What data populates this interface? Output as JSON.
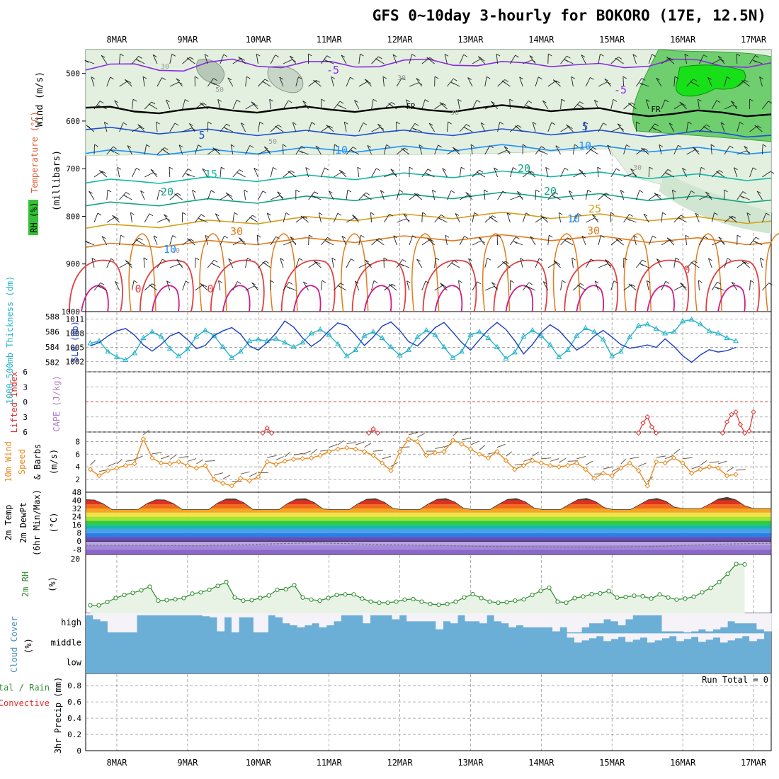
{
  "title": "GFS 0~10day 3-hourly for BOKORO (17E, 12.5N)",
  "dates": [
    "8MAR",
    "9MAR",
    "10MAR",
    "11MAR",
    "12MAR",
    "13MAR",
    "14MAR",
    "15MAR",
    "16MAR",
    "17MAR"
  ],
  "colors": {
    "rh_fill": "#e3f0e0",
    "rh_mid": "#6fcf6f",
    "rh_high": "#18e018",
    "cloud": "#6baed6",
    "cloud_bg": "#f5f2f8",
    "grid": "#9a9a9a"
  },
  "chart_data": [
    {
      "id": "upper_air",
      "type": "contour",
      "ylabel_rh": "RH (%)",
      "ylabel_temp": "Temperature (°C)",
      "ylabel_wind": "Wind (m/s)",
      "ylabel_axis": "(millibars)",
      "yticks": [
        500,
        600,
        700,
        800,
        900,
        1000
      ],
      "ylim": [
        450,
        1000
      ],
      "temperature_labels": [
        "-5",
        "-5",
        "FR",
        "FR",
        "5",
        "5",
        "10",
        "10",
        "15",
        "15",
        "20",
        "20",
        "25",
        "30",
        "30",
        "0",
        "0",
        "0",
        "10",
        "10"
      ],
      "rh_labels": [
        "30",
        "50",
        "30",
        "30",
        "50",
        "30",
        "10"
      ],
      "isotherms": [
        {
          "label": "-5",
          "color": "#8a2be2",
          "p": [
            493,
            480,
            495,
            470,
            488,
            475,
            486,
            470,
            484,
            478,
            482,
            488,
            470,
            485,
            478
          ]
        },
        {
          "label": "FR",
          "color": "#000000",
          "p": [
            572,
            580,
            576,
            578,
            575,
            576,
            574,
            577,
            573,
            572,
            575,
            583,
            585,
            582,
            586
          ]
        },
        {
          "label": "5",
          "color": "#1f4fd6",
          "p": [
            618,
            620,
            622,
            624,
            625,
            626,
            624,
            626,
            623,
            622,
            624,
            626,
            628,
            625,
            630
          ]
        },
        {
          "label": "10",
          "color": "#1e90ff",
          "p": [
            668,
            665,
            666,
            664,
            662,
            660,
            659,
            658,
            656,
            655,
            657,
            658,
            660,
            662,
            665
          ]
        },
        {
          "label": "15",
          "color": "#14b8a6",
          "p": [
            730,
            726,
            724,
            722,
            720,
            718,
            716,
            714,
            712,
            710,
            712,
            714,
            716,
            718,
            720
          ]
        },
        {
          "label": "20",
          "color": "#10a37f",
          "p": [
            778,
            774,
            770,
            768,
            765,
            762,
            760,
            758,
            756,
            755,
            757,
            760,
            762,
            764,
            766
          ]
        },
        {
          "label": "25",
          "color": "#d4a017",
          "p": [
            825,
            820,
            816,
            812,
            808,
            805,
            802,
            800,
            798,
            797,
            800,
            802,
            805,
            808,
            810
          ]
        },
        {
          "label": "30",
          "color": "#e07b1a",
          "p": [
            865,
            860,
            858,
            855,
            852,
            850,
            848,
            846,
            845,
            844,
            846,
            848,
            850,
            852,
            855
          ]
        }
      ]
    },
    {
      "id": "thickness_slp",
      "type": "line",
      "ylabel_left": "1000-500mb Thickness (dm)",
      "ylabel_right": "SLP (mb)",
      "thickness_ticks": [
        588,
        586,
        584,
        582
      ],
      "slp_ticks": [
        1011,
        1008,
        1005,
        1002
      ],
      "series": [
        {
          "name": "Thickness (dm)",
          "color": "#26b3c9",
          "values": [
            584.5,
            584.8,
            583.4,
            582.7,
            582.3,
            583.2,
            585.2,
            586.0,
            585.4,
            583.8,
            582.8,
            583.7,
            585.4,
            586.2,
            585.5,
            584.0,
            582.6,
            583.4,
            584.8,
            585.0,
            584.8,
            585.1,
            584.6,
            584.0,
            584.6,
            585.8,
            586.3,
            585.6,
            584.4,
            582.8,
            583.6,
            585.5,
            586.0,
            585.2,
            584.0,
            582.9,
            583.6,
            585.3,
            586.2,
            585.6,
            584.0,
            582.6,
            583.4,
            585.6,
            586.0,
            585.2,
            584.0,
            582.5,
            583.3,
            585.4,
            586.2,
            585.5,
            584.3,
            582.7,
            583.6,
            585.5,
            586.5,
            586.0,
            585.0,
            582.8,
            583.4,
            585.3,
            586.8,
            587.0,
            586.4,
            585.8,
            586.0,
            587.4,
            587.6,
            587.0,
            586.1,
            585.8,
            585.2,
            584.8
          ]
        },
        {
          "name": "SLP (mb)",
          "color": "#1d3fc4",
          "values": [
            1005.3,
            1006.0,
            1007.4,
            1008.5,
            1009.0,
            1007.6,
            1005.5,
            1004.2,
            1005.6,
            1007.4,
            1008.2,
            1006.6,
            1004.7,
            1005.4,
            1007.5,
            1008.5,
            1009.2,
            1007.8,
            1005.3,
            1004.4,
            1006.0,
            1008.0,
            1010.6,
            1009.3,
            1007.0,
            1005.2,
            1006.5,
            1008.5,
            1010.2,
            1009.6,
            1007.6,
            1005.4,
            1007.2,
            1009.5,
            1010.4,
            1008.6,
            1006.2,
            1005.3,
            1007.2,
            1009.2,
            1010.3,
            1008.2,
            1006.0,
            1004.4,
            1006.6,
            1008.7,
            1010.3,
            1008.8,
            1006.4,
            1003.6,
            1005.6,
            1008.2,
            1009.8,
            1008.6,
            1006.5,
            1004.4,
            1005.6,
            1007.4,
            1008.6,
            1007.2,
            1005.6,
            1004.8,
            1005.1,
            1005.5,
            1005.0,
            1006.8,
            1005.2,
            1003.2,
            1001.8,
            1003.4,
            1004.5,
            1004.0,
            1004.3,
            1005.0
          ]
        }
      ]
    },
    {
      "id": "lifted_cape",
      "type": "line",
      "ylabel_left": "Lifted Index",
      "ylabel_right": "CAPE (J/kg)",
      "yticks_labels": [
        "6",
        "3",
        "0",
        "3",
        "6"
      ],
      "yticks": [
        -6,
        -3,
        0,
        3,
        6
      ],
      "ylim": [
        -6,
        6
      ],
      "series": [
        {
          "name": "Lifted Index",
          "color": "#e03030",
          "segments": [
            {
              "x": [
                19.5,
                20.0,
                20.5
              ],
              "y": [
                6.2,
                5.2,
                6.2
              ]
            },
            {
              "x": [
                31.5,
                32.0,
                32.5
              ],
              "y": [
                6.2,
                5.4,
                6.2
              ]
            },
            {
              "x": [
                62.0,
                62.5,
                63.0,
                63.5,
                64.0
              ],
              "y": [
                6.2,
                4.2,
                3.0,
                5.0,
                6.2
              ]
            },
            {
              "x": [
                71.5,
                72.0,
                72.5,
                73.0,
                73.5,
                74.0
              ],
              "y": [
                6.2,
                4.0,
                2.5,
                2.0,
                4.5,
                6.2
              ]
            },
            {
              "x": [
                74.5,
                75.0
              ],
              "y": [
                5.8,
                2.0
              ]
            }
          ]
        }
      ]
    },
    {
      "id": "wind10m",
      "type": "line",
      "ylabel_1": "10m Wind",
      "ylabel_2": "Speed",
      "ylabel_3": "& Barbs",
      "ylabel_unit": "(m/s)",
      "yticks": [
        2,
        4,
        6,
        8
      ],
      "ylim": [
        0,
        9.5
      ],
      "series": [
        {
          "name": "Speed (m/s)",
          "color": "#e8891c",
          "values": [
            3.6,
            2.6,
            3.4,
            3.8,
            4.2,
            4.5,
            8.4,
            5.4,
            4.6,
            4.5,
            4.8,
            4.2,
            3.8,
            4.2,
            2.0,
            1.4,
            1.0,
            2.2,
            1.8,
            2.4,
            4.8,
            4.4,
            4.9,
            5.2,
            5.3,
            5.4,
            5.8,
            6.4,
            6.8,
            7.0,
            6.8,
            6.4,
            5.8,
            4.6,
            3.4,
            6.4,
            8.4,
            8.0,
            5.8,
            6.2,
            6.4,
            8.2,
            7.6,
            6.8,
            6.0,
            5.4,
            6.4,
            5.0,
            3.6,
            4.2,
            5.0,
            4.6,
            4.2,
            4.0,
            4.2,
            4.6,
            3.6,
            2.2,
            3.0,
            2.6,
            3.8,
            4.6,
            3.4,
            1.0,
            4.8,
            4.6,
            5.4,
            4.6,
            3.0,
            3.6,
            4.0,
            3.8,
            2.6,
            2.8
          ]
        }
      ]
    },
    {
      "id": "temp2m",
      "type": "area",
      "ylabel_1": "2m Temp",
      "ylabel_2": "2m DewPt",
      "ylabel_3": "(6hr Min/Max)",
      "ylabel_unit": "(°C)",
      "ytick_labels": [
        "48",
        "40",
        "32",
        "24",
        "16",
        "8",
        "0",
        "-8"
      ],
      "yticks": [
        48,
        40,
        32,
        24,
        16,
        8,
        0,
        -8
      ],
      "ylim": [
        -13,
        48
      ],
      "temp_max_daily": [
        41,
        42,
        42,
        42,
        42,
        42,
        42,
        42,
        43,
        43
      ],
      "temp_min_daily": [
        31,
        31,
        31,
        31,
        31,
        31,
        31,
        31,
        32,
        32
      ],
      "dewpoint": [
        -4,
        -4,
        -4.5,
        -3,
        -1.5,
        -3,
        -4,
        -5,
        -5.5,
        -6,
        -5,
        -3,
        -2
      ]
    },
    {
      "id": "rh2m",
      "type": "line",
      "ylabel_1": "2m RH",
      "ylabel_unit": "(%)",
      "yticks": [
        20
      ],
      "ylim": [
        0,
        20
      ],
      "series": [
        {
          "name": "2m RH (%)",
          "color": "#2e8b2e",
          "values": [
            2.0,
            2.0,
            3.3,
            4.8,
            6.0,
            6.8,
            7.8,
            9.2,
            3.8,
            4.0,
            4.3,
            4.8,
            6.5,
            7.0,
            8.0,
            9.5,
            11.0,
            5.0,
            3.8,
            4.0,
            4.8,
            5.8,
            8.0,
            8.2,
            9.8,
            5.0,
            4.2,
            3.8,
            4.8,
            6.0,
            6.2,
            6.2,
            4.6,
            3.4,
            3.0,
            3.0,
            3.4,
            4.2,
            4.4,
            3.4,
            2.5,
            2.2,
            2.5,
            3.4,
            5.0,
            6.3,
            4.8,
            3.4,
            3.0,
            3.2,
            3.8,
            4.3,
            6.0,
            7.6,
            8.8,
            3.4,
            3.0,
            4.8,
            5.4,
            6.3,
            6.6,
            7.5,
            5.0,
            5.2,
            5.7,
            5.5,
            4.6,
            6.2,
            5.0,
            4.2,
            4.6,
            5.3,
            7.0,
            8.7,
            11.0,
            14.2,
            18.0,
            17.8
          ]
        }
      ]
    },
    {
      "id": "cloud",
      "type": "area",
      "ylabel": "Cloud Cover",
      "ylabel_unit": "(%)",
      "levels": [
        "high",
        "middle",
        "low"
      ],
      "high_cover": [
        90,
        70,
        60,
        5,
        5,
        5,
        5,
        90,
        90,
        90,
        90,
        90,
        90,
        90,
        90,
        90,
        85,
        80,
        10,
        80,
        5,
        80,
        80,
        5,
        5,
        90,
        80,
        50,
        40,
        30,
        40,
        50,
        30,
        40,
        60,
        90,
        90,
        90,
        50,
        90,
        90,
        90,
        70,
        90,
        60,
        60,
        60,
        60,
        20,
        60,
        50,
        90,
        60,
        60,
        50,
        90,
        60,
        50,
        30,
        40,
        30,
        30,
        30,
        30,
        10,
        30,
        5,
        5,
        30,
        50,
        50,
        70,
        60,
        40,
        70,
        90,
        90,
        90,
        90,
        10,
        10,
        10,
        5,
        10,
        20,
        10,
        20,
        30,
        60,
        50,
        50,
        50,
        20,
        10
      ],
      "middle_gaps": [
        66,
        67,
        68,
        69,
        70,
        71,
        72,
        73,
        74,
        75,
        76,
        77,
        78,
        79,
        80,
        81,
        82,
        83,
        84,
        85,
        86,
        87,
        88,
        89,
        90,
        91,
        92
      ]
    },
    {
      "id": "precip",
      "type": "bar",
      "ylabel_1": "Total / Rain",
      "ylabel_2": "Convective",
      "ylabel_3": "3hr Precip (mm)",
      "yticks": [
        0,
        0.2,
        0.4,
        0.6,
        0.8
      ],
      "ytick_labels": [
        "0",
        "0.2",
        "0.4",
        "0.6",
        "0.8"
      ],
      "ylim": [
        0,
        0.95
      ],
      "run_total": "Run Total = 0",
      "values": []
    }
  ]
}
